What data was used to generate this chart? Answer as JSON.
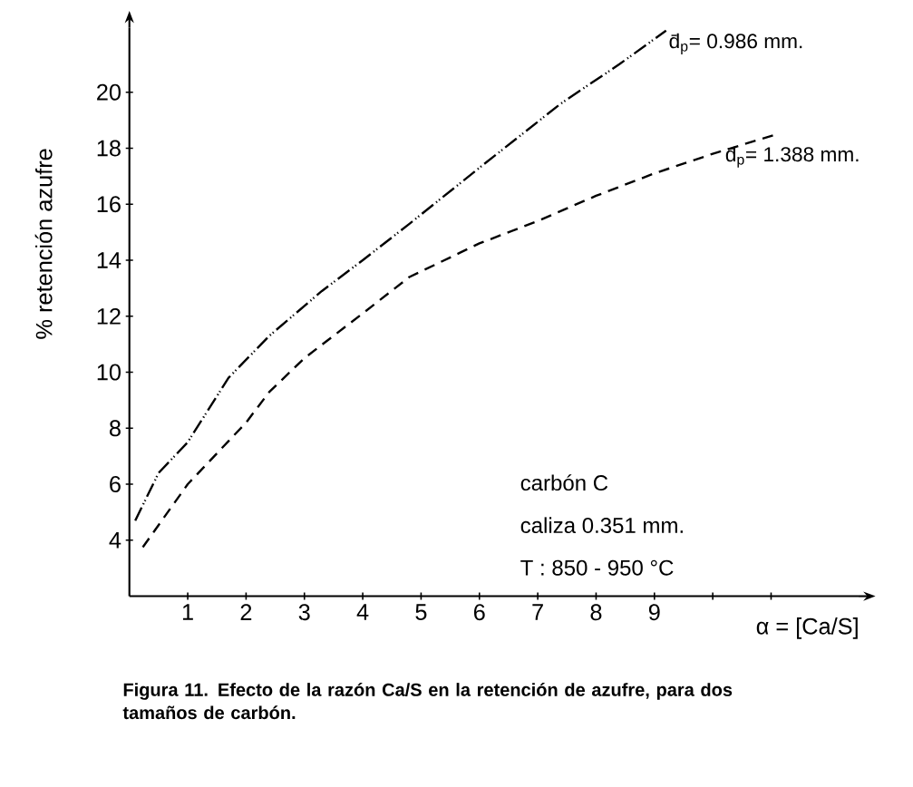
{
  "chart_data": {
    "type": "line",
    "xlabel": "α = [Ca/S]",
    "ylabel": "% retención azufre",
    "xlim": [
      0,
      12.5
    ],
    "ylim": [
      2,
      22.3
    ],
    "xticks": [
      1,
      2,
      3,
      4,
      5,
      6,
      7,
      8,
      9,
      {
        "value": 10,
        "label": null
      },
      {
        "value": 11,
        "label": null
      }
    ],
    "yticks": [
      4,
      6,
      8,
      10,
      12,
      14,
      16,
      18,
      20
    ],
    "series": [
      {
        "name": "d̄$_{p}$= 0.986 mm.",
        "color": "#000000",
        "line_style": "dashdotdot",
        "x": [
          0.1,
          0.5,
          1,
          1.7,
          2.4,
          3.3,
          4,
          4.8,
          6,
          7.4,
          8.4,
          9.2
        ],
        "values": [
          4.7,
          6.4,
          7.5,
          9.8,
          11.3,
          12.9,
          14.0,
          15.3,
          17.3,
          19.6,
          21.0,
          22.2
        ]
      },
      {
        "name": "d̄$_{p}$= 1.388 mm.",
        "color": "#000000",
        "line_style": "dashed",
        "x": [
          0.23,
          1,
          2,
          2.4,
          3,
          4,
          4.8,
          6,
          7,
          8,
          9,
          10,
          11.1
        ],
        "values": [
          3.75,
          6.0,
          8.2,
          9.3,
          10.5,
          12.1,
          13.4,
          14.6,
          15.4,
          16.3,
          17.1,
          17.8,
          18.5
        ]
      }
    ],
    "annotations": [
      "carbón C",
      "caliza 0.351 mm.",
      "T : 850 - 950 °C",
      "Figura 11. Efecto de la razón Ca/S en la retención de azufre, para dos tamaños de carbón."
    ]
  }
}
